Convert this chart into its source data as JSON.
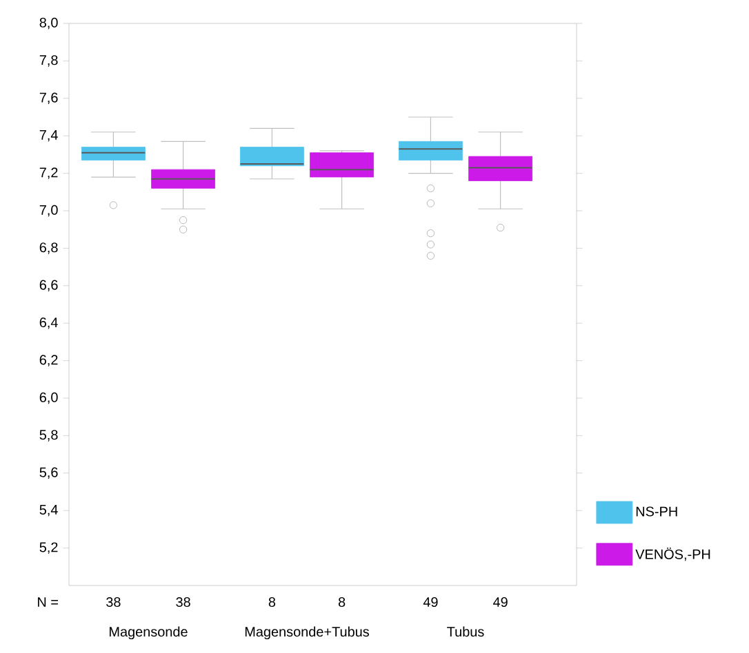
{
  "chart_data": {
    "type": "box",
    "categories": [
      "Magensonde",
      "Magensonde+Tubus",
      "Tubus"
    ],
    "series": [
      {
        "name": "NS-PH",
        "color": "#4fc3ec",
        "boxes": [
          {
            "low": 7.18,
            "q1": 7.27,
            "median": 7.31,
            "q3": 7.34,
            "high": 7.42,
            "outliers": [
              7.03
            ]
          },
          {
            "low": 7.17,
            "q1": 7.24,
            "median": 7.25,
            "q3": 7.34,
            "high": 7.44
          },
          {
            "low": 7.2,
            "q1": 7.27,
            "median": 7.33,
            "q3": 7.37,
            "high": 7.5,
            "outliers": [
              7.12,
              7.04,
              6.88,
              6.82,
              6.76
            ]
          }
        ]
      },
      {
        "name": "VENÖS,-PH",
        "color": "#cc1ae8",
        "boxes": [
          {
            "low": 7.01,
            "q1": 7.12,
            "median": 7.17,
            "q3": 7.22,
            "high": 7.37,
            "outliers": [
              6.95,
              6.9
            ]
          },
          {
            "low": 7.01,
            "q1": 7.18,
            "median": 7.22,
            "q3": 7.31,
            "high": 7.32
          },
          {
            "low": 7.01,
            "q1": 7.16,
            "median": 7.23,
            "q3": 7.29,
            "high": 7.42,
            "outliers": [
              6.91
            ]
          }
        ]
      }
    ],
    "ylim": [
      5.0,
      8.0
    ],
    "yticks": [
      {
        "value": 5.2,
        "label": "5,2"
      },
      {
        "value": 5.4,
        "label": "5,4"
      },
      {
        "value": 5.6,
        "label": "5,6"
      },
      {
        "value": 5.8,
        "label": "5,8"
      },
      {
        "value": 6.0,
        "label": "6,0"
      },
      {
        "value": 6.2,
        "label": "6,2"
      },
      {
        "value": 6.4,
        "label": "6,4"
      },
      {
        "value": 6.6,
        "label": "6,6"
      },
      {
        "value": 6.8,
        "label": "6,8"
      },
      {
        "value": 7.0,
        "label": "7,0"
      },
      {
        "value": 7.2,
        "label": "7,2"
      },
      {
        "value": 7.4,
        "label": "7,4"
      },
      {
        "value": 7.6,
        "label": "7,6"
      },
      {
        "value": 7.8,
        "label": "7,8"
      },
      {
        "value": 8.0,
        "label": "8,0"
      }
    ],
    "legend": "bottom right",
    "annotations": [
      "N =",
      "38",
      "38",
      "8",
      "8",
      "49",
      "49"
    ]
  }
}
